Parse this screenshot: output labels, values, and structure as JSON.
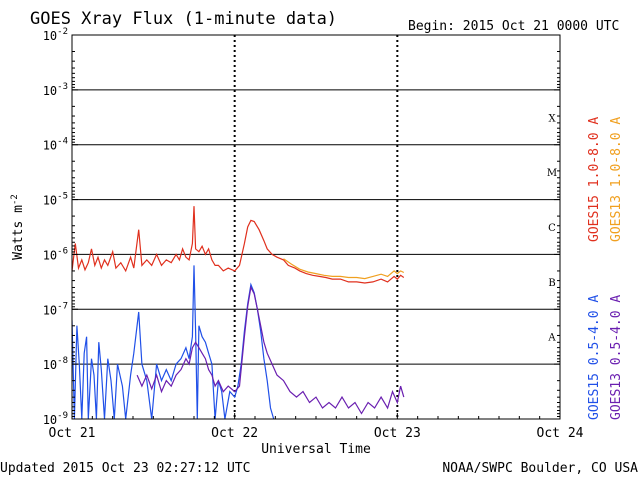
{
  "header": {
    "title": "GOES Xray Flux (1-minute data)",
    "begin": "Begin:  2015 Oct 21 0000 UTC"
  },
  "footer": {
    "updated": "Updated 2015 Oct 23 02:27:12 UTC",
    "credit": "NOAA/SWPC Boulder, CO USA"
  },
  "chart_data": {
    "type": "line",
    "title": "GOES Xray Flux (1-minute data)",
    "xlabel": "Universal Time",
    "ylabel_base": "Watts m",
    "ylabel_exp": "-2",
    "yscale": "log",
    "ylim": [
      1e-09,
      0.01
    ],
    "xlim": [
      "Oct 21",
      "Oct 24"
    ],
    "x_ticks": [
      {
        "label": "Oct 21",
        "day": 0
      },
      {
        "label": "Oct 22",
        "day": 1
      },
      {
        "label": "Oct 23",
        "day": 2
      },
      {
        "label": "Oct 24",
        "day": 3
      }
    ],
    "y_ticks": [
      {
        "base": "10",
        "exp": "-2",
        "exponent": -2
      },
      {
        "base": "10",
        "exp": "-3",
        "exponent": -3
      },
      {
        "base": "10",
        "exp": "-4",
        "exponent": -4
      },
      {
        "base": "10",
        "exp": "-5",
        "exponent": -5
      },
      {
        "base": "10",
        "exp": "-6",
        "exponent": -6
      },
      {
        "base": "10",
        "exp": "-7",
        "exponent": -7
      },
      {
        "base": "10",
        "exp": "-8",
        "exponent": -8
      },
      {
        "base": "10",
        "exp": "-9",
        "exponent": -9
      }
    ],
    "flare_classes": [
      {
        "label": "X",
        "exponent": -3.5
      },
      {
        "label": "M",
        "exponent": -4.5
      },
      {
        "label": "C",
        "exponent": -5.5
      },
      {
        "label": "B",
        "exponent": -6.5
      },
      {
        "label": "A",
        "exponent": -7.5
      }
    ],
    "legend_right": [
      {
        "name": "GOES15 1.0-8.0 A",
        "color": "#e0301e"
      },
      {
        "name": "GOES13 1.0-8.0 A",
        "color": "#f0a020"
      }
    ],
    "legend_bottom_right": [
      {
        "name": "GOES15 0.5-4.0 A",
        "color": "#2050e8"
      },
      {
        "name": "GOES13 0.5-4.0 A",
        "color": "#6a1fb0"
      }
    ],
    "series": [
      {
        "name": "GOES15 1.0-8.0 A",
        "color": "#e0301e",
        "points": [
          [
            0,
            -6.3
          ],
          [
            0.02,
            -5.8
          ],
          [
            0.04,
            -6.25
          ],
          [
            0.06,
            -6.1
          ],
          [
            0.08,
            -6.28
          ],
          [
            0.1,
            -6.15
          ],
          [
            0.12,
            -5.9
          ],
          [
            0.14,
            -6.2
          ],
          [
            0.16,
            -6.05
          ],
          [
            0.18,
            -6.25
          ],
          [
            0.2,
            -6.1
          ],
          [
            0.22,
            -6.2
          ],
          [
            0.25,
            -5.95
          ],
          [
            0.27,
            -6.25
          ],
          [
            0.3,
            -6.15
          ],
          [
            0.33,
            -6.3
          ],
          [
            0.36,
            -6.05
          ],
          [
            0.38,
            -6.25
          ],
          [
            0.41,
            -5.55
          ],
          [
            0.43,
            -6.2
          ],
          [
            0.46,
            -6.1
          ],
          [
            0.49,
            -6.2
          ],
          [
            0.52,
            -6.0
          ],
          [
            0.55,
            -6.2
          ],
          [
            0.58,
            -6.1
          ],
          [
            0.61,
            -6.15
          ],
          [
            0.64,
            -6.0
          ],
          [
            0.66,
            -6.1
          ],
          [
            0.68,
            -5.9
          ],
          [
            0.7,
            -6.05
          ],
          [
            0.72,
            -6.1
          ],
          [
            0.74,
            -5.8
          ],
          [
            0.75,
            -5.12
          ],
          [
            0.76,
            -5.9
          ],
          [
            0.78,
            -5.95
          ],
          [
            0.8,
            -5.85
          ],
          [
            0.82,
            -6.0
          ],
          [
            0.84,
            -5.9
          ],
          [
            0.86,
            -6.1
          ],
          [
            0.88,
            -6.2
          ],
          [
            0.9,
            -6.2
          ],
          [
            0.93,
            -6.3
          ],
          [
            0.96,
            -6.25
          ],
          [
            1.0,
            -6.3
          ],
          [
            1.03,
            -6.2
          ],
          [
            1.06,
            -5.8
          ],
          [
            1.08,
            -5.5
          ],
          [
            1.1,
            -5.38
          ],
          [
            1.12,
            -5.4
          ],
          [
            1.15,
            -5.55
          ],
          [
            1.18,
            -5.75
          ],
          [
            1.2,
            -5.9
          ],
          [
            1.23,
            -6.0
          ],
          [
            1.26,
            -6.05
          ],
          [
            1.3,
            -6.1
          ],
          [
            1.33,
            -6.2
          ],
          [
            1.37,
            -6.25
          ],
          [
            1.4,
            -6.3
          ],
          [
            1.44,
            -6.35
          ],
          [
            1.48,
            -6.38
          ],
          [
            1.52,
            -6.4
          ],
          [
            1.56,
            -6.42
          ],
          [
            1.6,
            -6.45
          ],
          [
            1.65,
            -6.45
          ],
          [
            1.7,
            -6.5
          ],
          [
            1.75,
            -6.5
          ],
          [
            1.8,
            -6.52
          ],
          [
            1.85,
            -6.5
          ],
          [
            1.9,
            -6.45
          ],
          [
            1.94,
            -6.5
          ],
          [
            1.98,
            -6.4
          ],
          [
            2.0,
            -6.45
          ],
          [
            2.02,
            -6.38
          ],
          [
            2.04,
            -6.42
          ]
        ]
      },
      {
        "name": "GOES13 1.0-8.0 A",
        "color": "#f0a020",
        "points": [
          [
            1.3,
            -6.08
          ],
          [
            1.35,
            -6.18
          ],
          [
            1.4,
            -6.27
          ],
          [
            1.45,
            -6.32
          ],
          [
            1.5,
            -6.35
          ],
          [
            1.55,
            -6.38
          ],
          [
            1.6,
            -6.4
          ],
          [
            1.65,
            -6.4
          ],
          [
            1.7,
            -6.42
          ],
          [
            1.75,
            -6.42
          ],
          [
            1.8,
            -6.44
          ],
          [
            1.85,
            -6.4
          ],
          [
            1.9,
            -6.36
          ],
          [
            1.94,
            -6.4
          ],
          [
            1.98,
            -6.3
          ],
          [
            2.0,
            -6.35
          ],
          [
            2.02,
            -6.3
          ],
          [
            2.04,
            -6.33
          ]
        ]
      },
      {
        "name": "GOES15 0.5-4.0 A",
        "color": "#2050e8",
        "points": [
          [
            0,
            -7.2
          ],
          [
            0.015,
            -9.0
          ],
          [
            0.03,
            -7.3
          ],
          [
            0.045,
            -8.0
          ],
          [
            0.06,
            -9.0
          ],
          [
            0.075,
            -7.8
          ],
          [
            0.09,
            -7.5
          ],
          [
            0.1,
            -9.0
          ],
          [
            0.12,
            -7.9
          ],
          [
            0.135,
            -8.2
          ],
          [
            0.15,
            -9.0
          ],
          [
            0.165,
            -7.6
          ],
          [
            0.18,
            -8.1
          ],
          [
            0.2,
            -9.0
          ],
          [
            0.22,
            -7.9
          ],
          [
            0.24,
            -8.3
          ],
          [
            0.26,
            -9.0
          ],
          [
            0.28,
            -8.0
          ],
          [
            0.31,
            -8.4
          ],
          [
            0.33,
            -9.0
          ],
          [
            0.36,
            -8.2
          ],
          [
            0.38,
            -7.8
          ],
          [
            0.41,
            -7.05
          ],
          [
            0.43,
            -8.0
          ],
          [
            0.46,
            -8.3
          ],
          [
            0.49,
            -9.0
          ],
          [
            0.52,
            -8.0
          ],
          [
            0.55,
            -8.3
          ],
          [
            0.58,
            -8.1
          ],
          [
            0.61,
            -8.3
          ],
          [
            0.64,
            -8.0
          ],
          [
            0.67,
            -7.9
          ],
          [
            0.7,
            -7.7
          ],
          [
            0.72,
            -7.9
          ],
          [
            0.74,
            -7.5
          ],
          [
            0.75,
            -6.2
          ],
          [
            0.76,
            -7.4
          ],
          [
            0.77,
            -9.0
          ],
          [
            0.78,
            -7.3
          ],
          [
            0.8,
            -7.5
          ],
          [
            0.82,
            -7.6
          ],
          [
            0.84,
            -7.8
          ],
          [
            0.86,
            -8.0
          ],
          [
            0.88,
            -9.0
          ],
          [
            0.9,
            -8.3
          ],
          [
            0.92,
            -8.5
          ],
          [
            0.94,
            -9.0
          ],
          [
            0.97,
            -8.5
          ],
          [
            1.0,
            -8.6
          ],
          [
            1.02,
            -8.4
          ],
          [
            1.04,
            -8.0
          ],
          [
            1.06,
            -7.4
          ],
          [
            1.08,
            -6.9
          ],
          [
            1.1,
            -6.55
          ],
          [
            1.12,
            -6.7
          ],
          [
            1.14,
            -7.0
          ],
          [
            1.16,
            -7.4
          ],
          [
            1.18,
            -7.9
          ],
          [
            1.2,
            -8.3
          ],
          [
            1.22,
            -8.8
          ],
          [
            1.24,
            -9.0
          ]
        ]
      },
      {
        "name": "GOES13 0.5-4.0 A",
        "color": "#6a1fb0",
        "points": [
          [
            0.4,
            -8.2
          ],
          [
            0.43,
            -8.4
          ],
          [
            0.46,
            -8.2
          ],
          [
            0.49,
            -8.45
          ],
          [
            0.52,
            -8.2
          ],
          [
            0.55,
            -8.5
          ],
          [
            0.58,
            -8.3
          ],
          [
            0.61,
            -8.4
          ],
          [
            0.64,
            -8.2
          ],
          [
            0.67,
            -8.1
          ],
          [
            0.7,
            -7.9
          ],
          [
            0.72,
            -8.0
          ],
          [
            0.74,
            -7.7
          ],
          [
            0.76,
            -7.6
          ],
          [
            0.78,
            -7.7
          ],
          [
            0.8,
            -7.8
          ],
          [
            0.82,
            -7.9
          ],
          [
            0.84,
            -8.1
          ],
          [
            0.86,
            -8.2
          ],
          [
            0.88,
            -8.4
          ],
          [
            0.9,
            -8.3
          ],
          [
            0.93,
            -8.5
          ],
          [
            0.96,
            -8.4
          ],
          [
            1.0,
            -8.5
          ],
          [
            1.03,
            -8.4
          ],
          [
            1.06,
            -7.5
          ],
          [
            1.08,
            -6.95
          ],
          [
            1.1,
            -6.6
          ],
          [
            1.12,
            -6.72
          ],
          [
            1.14,
            -7.0
          ],
          [
            1.16,
            -7.3
          ],
          [
            1.18,
            -7.6
          ],
          [
            1.2,
            -7.8
          ],
          [
            1.23,
            -8.0
          ],
          [
            1.26,
            -8.2
          ],
          [
            1.3,
            -8.3
          ],
          [
            1.34,
            -8.5
          ],
          [
            1.38,
            -8.6
          ],
          [
            1.42,
            -8.5
          ],
          [
            1.46,
            -8.7
          ],
          [
            1.5,
            -8.6
          ],
          [
            1.54,
            -8.8
          ],
          [
            1.58,
            -8.7
          ],
          [
            1.62,
            -8.8
          ],
          [
            1.66,
            -8.6
          ],
          [
            1.7,
            -8.8
          ],
          [
            1.74,
            -8.7
          ],
          [
            1.78,
            -8.9
          ],
          [
            1.82,
            -8.7
          ],
          [
            1.86,
            -8.8
          ],
          [
            1.9,
            -8.6
          ],
          [
            1.94,
            -8.8
          ],
          [
            1.97,
            -8.5
          ],
          [
            2.0,
            -8.7
          ],
          [
            2.02,
            -8.4
          ],
          [
            2.04,
            -8.6
          ]
        ]
      }
    ],
    "grid": true,
    "grid_note": "solid horizontal lines at each decade; dotted vertical lines at day boundaries"
  }
}
